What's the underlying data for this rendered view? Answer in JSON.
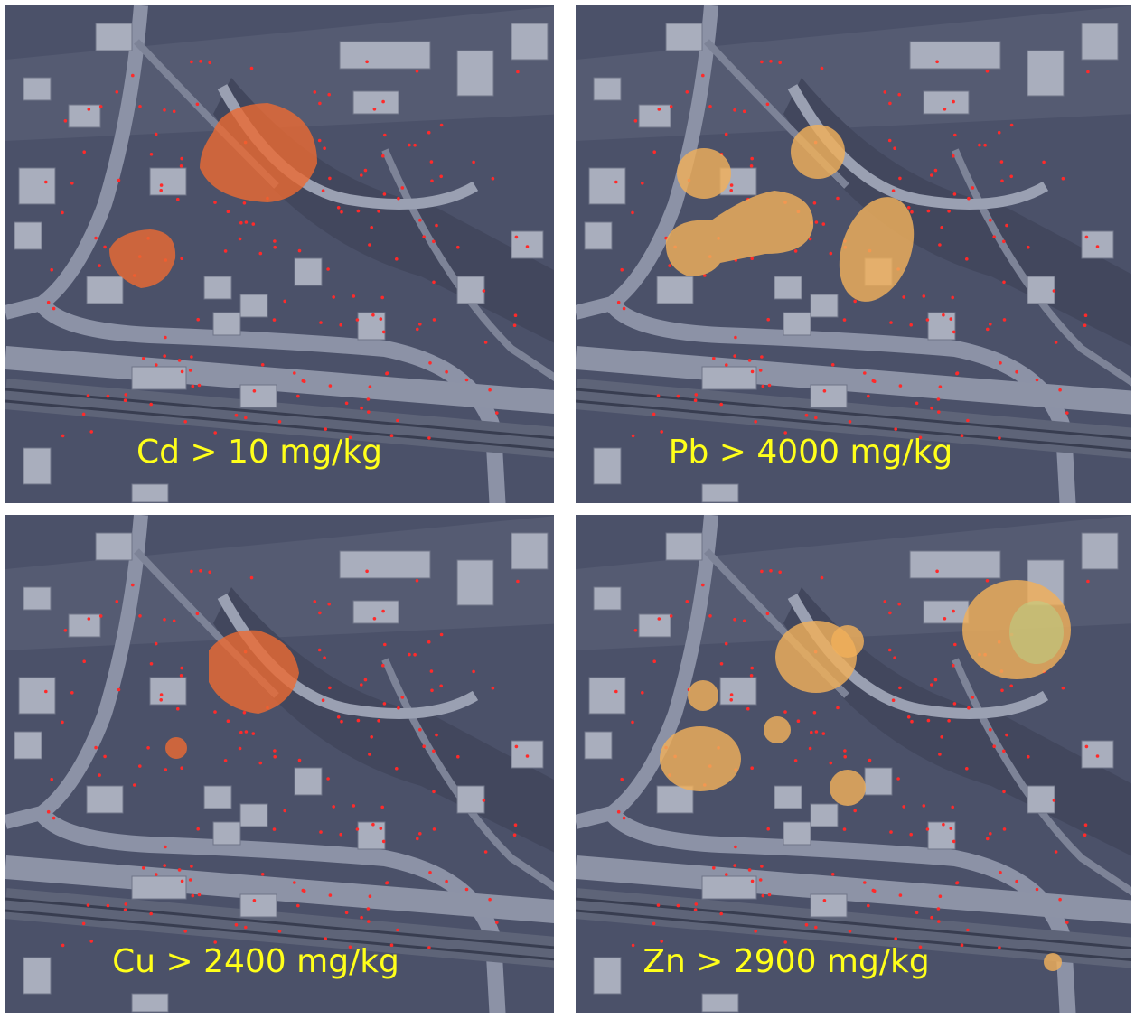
{
  "panels": [
    {
      "label": "Cd > 10 mg/kg"
    },
    {
      "label": "Pb > 4000 mg/kg"
    },
    {
      "label": "Cu > 2400 mg/kg"
    },
    {
      "label": "Zn > 2900 mg/kg"
    }
  ]
}
